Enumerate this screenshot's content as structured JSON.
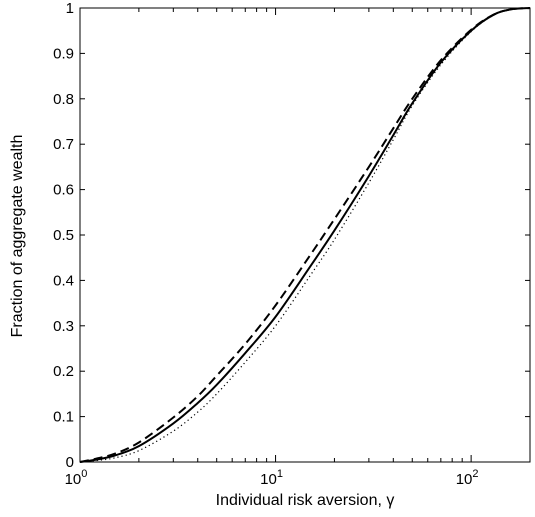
{
  "chart_data": {
    "type": "line",
    "xlabel": "Individual risk aversion, γ",
    "ylabel": "Fraction of aggregate wealth",
    "xscale": "log",
    "xlim": [
      1,
      200
    ],
    "ylim": [
      0,
      1
    ],
    "grid": false,
    "x_ticks": [
      {
        "base": "10",
        "exp": "0",
        "value": 1
      },
      {
        "base": "10",
        "exp": "1",
        "value": 10
      },
      {
        "base": "10",
        "exp": "2",
        "value": 100
      }
    ],
    "y_ticks": [
      "0",
      "0.1",
      "0.2",
      "0.3",
      "0.4",
      "0.5",
      "0.6",
      "0.7",
      "0.8",
      "0.9",
      "1"
    ],
    "series": [
      {
        "style": "solid",
        "x": [
          1,
          1.2,
          1.5,
          2,
          3,
          4,
          5,
          7,
          10,
          15,
          20,
          30,
          40,
          50,
          70,
          100,
          130,
          160,
          200
        ],
        "y": [
          0,
          0.005,
          0.014,
          0.035,
          0.085,
          0.13,
          0.17,
          0.24,
          0.32,
          0.43,
          0.51,
          0.63,
          0.72,
          0.79,
          0.88,
          0.95,
          0.985,
          0.997,
          1
        ]
      },
      {
        "style": "dashed",
        "x": [
          1,
          1.2,
          1.5,
          2,
          3,
          4,
          5,
          7,
          10,
          15,
          20,
          30,
          40,
          50,
          70,
          100,
          130,
          160,
          200
        ],
        "y": [
          0,
          0.007,
          0.018,
          0.043,
          0.098,
          0.145,
          0.19,
          0.26,
          0.345,
          0.455,
          0.535,
          0.65,
          0.735,
          0.8,
          0.885,
          0.952,
          0.985,
          0.997,
          1
        ]
      },
      {
        "style": "dotted",
        "x": [
          1,
          1.2,
          1.5,
          2,
          3,
          4,
          5,
          7,
          10,
          15,
          20,
          30,
          40,
          50,
          70,
          100,
          130,
          160,
          200
        ],
        "y": [
          0,
          0.003,
          0.009,
          0.025,
          0.068,
          0.11,
          0.15,
          0.22,
          0.3,
          0.41,
          0.49,
          0.615,
          0.71,
          0.785,
          0.875,
          0.948,
          0.984,
          0.997,
          1
        ]
      }
    ]
  }
}
